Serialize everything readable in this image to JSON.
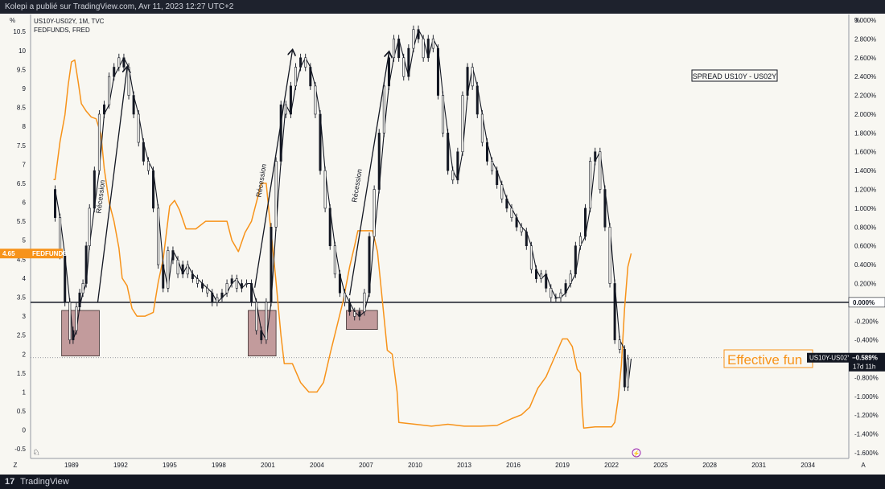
{
  "header": {
    "publish_text": "Kolepi a publié sur TradingView.com, Avr 11, 2023 12:27 UTC+2"
  },
  "footer": {
    "brand": "TradingView",
    "logo_glyph": "17"
  },
  "legend": {
    "line1": "US10Y-US02Y, 1M, TVC",
    "line2": "FEDFUNDS, FRED"
  },
  "unit_left": "%",
  "unit_right": "%",
  "corner_left": "Z",
  "corner_right": "A",
  "annotations": {
    "spread_box": "SPREAD US10Y - US02Y",
    "recession_label": "Récession",
    "effective_label": "Effective fun"
  },
  "badges": {
    "fedfunds_value": "4.65",
    "fedfunds_name": "FEDFUNDS",
    "spread_name": "US10Y-US02Y",
    "spread_value": "−0.589%",
    "countdown": "17d 11h",
    "zero_value": "0.000%"
  },
  "chart_data": {
    "type": "line",
    "x_range": [
      1986.5,
      2036.5
    ],
    "x_ticks": [
      "1989",
      "1992",
      "1995",
      "1998",
      "2001",
      "2004",
      "2007",
      "2010",
      "2013",
      "2016",
      "2019",
      "2022",
      "2025",
      "2028",
      "2031",
      "2034"
    ],
    "x_tick_values": [
      1989,
      1992,
      1995,
      1998,
      2001,
      2004,
      2007,
      2010,
      2013,
      2016,
      2019,
      2022,
      2025,
      2028,
      2031,
      2034
    ],
    "left_axis": {
      "range": [
        -0.75,
        10.95
      ],
      "ticks": [
        "10.5",
        "10",
        "9.5",
        "9",
        "8.5",
        "8",
        "7.5",
        "7",
        "6.5",
        "6",
        "5.5",
        "5",
        "4.5",
        "4",
        "3.5",
        "3",
        "2.5",
        "2",
        "1.5",
        "1",
        "0.5",
        "0",
        "-0.5"
      ],
      "tick_values": [
        10.5,
        10,
        9.5,
        9,
        8.5,
        8,
        7.5,
        7,
        6.5,
        6,
        5.5,
        5,
        4.5,
        4,
        3.5,
        3,
        2.5,
        2,
        1.5,
        1,
        0.5,
        0,
        -0.5
      ]
    },
    "right_axis": {
      "range": [
        -1.66,
        3.06
      ],
      "ticks": [
        "3.000%",
        "2.800%",
        "2.600%",
        "2.400%",
        "2.200%",
        "2.000%",
        "1.800%",
        "1.600%",
        "1.400%",
        "1.200%",
        "1.000%",
        "0.800%",
        "0.600%",
        "0.400%",
        "0.200%",
        "-0.200%",
        "-0.400%",
        "-0.600%",
        "-0.800%",
        "-1.000%",
        "-1.200%",
        "-1.400%",
        "-1.600%"
      ],
      "tick_values": [
        3.0,
        2.8,
        2.6,
        2.4,
        2.2,
        2.0,
        1.8,
        1.6,
        1.4,
        1.2,
        1.0,
        0.8,
        0.6,
        0.4,
        0.2,
        -0.2,
        -0.4,
        -0.6,
        -0.8,
        -1.0,
        -1.2,
        -1.4,
        -1.6
      ]
    },
    "series": [
      {
        "name": "FEDFUNDS",
        "axis": "left",
        "color": "#f7931a",
        "x": [
          1987.9,
          1988.0,
          1988.3,
          1988.6,
          1988.8,
          1989.0,
          1989.2,
          1989.4,
          1989.6,
          1989.9,
          1990.2,
          1990.5,
          1990.8,
          1991.0,
          1991.3,
          1991.6,
          1991.9,
          1992.1,
          1992.4,
          1992.7,
          1993.0,
          1993.5,
          1994.0,
          1994.3,
          1994.6,
          1995.0,
          1995.3,
          1995.6,
          1996.0,
          1996.6,
          1997.2,
          1997.6,
          1998.0,
          1998.5,
          1998.8,
          1999.2,
          1999.6,
          2000.0,
          2000.3,
          2000.6,
          2000.9,
          2001.1,
          2001.3,
          2001.5,
          2001.8,
          2002.0,
          2002.5,
          2003.0,
          2003.5,
          2004.0,
          2004.4,
          2004.8,
          2005.2,
          2005.6,
          2006.0,
          2006.3,
          2006.5,
          2007.0,
          2007.4,
          2007.7,
          2008.0,
          2008.3,
          2008.6,
          2008.9,
          2009.0,
          2010.0,
          2011.0,
          2012.0,
          2013.0,
          2014.0,
          2015.0,
          2015.9,
          2016.5,
          2017.0,
          2017.5,
          2018.0,
          2018.5,
          2019.0,
          2019.3,
          2019.6,
          2019.9,
          2020.1,
          2020.2,
          2020.3,
          2021.0,
          2021.5,
          2022.0,
          2022.2,
          2022.4,
          2022.6,
          2022.8,
          2023.0,
          2023.2
        ],
        "y": [
          6.6,
          6.6,
          7.6,
          8.3,
          9.1,
          9.7,
          9.75,
          9.2,
          8.6,
          8.4,
          8.25,
          8.2,
          7.8,
          6.9,
          6.0,
          5.5,
          4.8,
          4.0,
          3.8,
          3.2,
          3.0,
          3.0,
          3.1,
          3.9,
          4.5,
          5.9,
          6.05,
          5.8,
          5.3,
          5.3,
          5.5,
          5.5,
          5.5,
          5.5,
          5.0,
          4.7,
          5.2,
          5.5,
          6.0,
          6.5,
          6.5,
          5.6,
          4.8,
          3.9,
          2.5,
          1.75,
          1.75,
          1.25,
          1.0,
          1.0,
          1.25,
          2.0,
          2.7,
          3.4,
          4.3,
          4.85,
          5.25,
          5.25,
          5.25,
          4.7,
          3.4,
          2.1,
          2.0,
          1.0,
          0.2,
          0.15,
          0.1,
          0.15,
          0.1,
          0.1,
          0.12,
          0.3,
          0.4,
          0.6,
          1.1,
          1.4,
          1.9,
          2.4,
          2.4,
          2.2,
          1.6,
          1.5,
          0.6,
          0.05,
          0.08,
          0.08,
          0.08,
          0.2,
          0.8,
          1.7,
          3.2,
          4.3,
          4.65
        ]
      },
      {
        "name": "US10Y-US02Y",
        "axis": "right",
        "color": "#131722",
        "x": [
          1988.0,
          1988.3,
          1988.6,
          1988.9,
          1989.1,
          1989.3,
          1989.5,
          1989.7,
          1989.9,
          1990.1,
          1990.4,
          1990.7,
          1991.0,
          1991.3,
          1991.6,
          1991.9,
          1992.2,
          1992.5,
          1992.8,
          1993.1,
          1993.4,
          1993.7,
          1994.0,
          1994.3,
          1994.6,
          1994.9,
          1995.2,
          1995.5,
          1995.8,
          1996.1,
          1996.4,
          1996.7,
          1997.0,
          1997.3,
          1997.6,
          1997.9,
          1998.2,
          1998.5,
          1998.8,
          1999.1,
          1999.4,
          1999.7,
          2000.0,
          2000.3,
          2000.6,
          2000.9,
          2001.2,
          2001.5,
          2001.8,
          2002.1,
          2002.4,
          2002.7,
          2003.0,
          2003.3,
          2003.6,
          2003.9,
          2004.2,
          2004.5,
          2004.8,
          2005.1,
          2005.4,
          2005.7,
          2006.0,
          2006.3,
          2006.6,
          2006.9,
          2007.2,
          2007.5,
          2007.8,
          2008.1,
          2008.4,
          2008.7,
          2009.0,
          2009.3,
          2009.6,
          2009.9,
          2010.2,
          2010.5,
          2010.8,
          2011.1,
          2011.4,
          2011.7,
          2012.0,
          2012.3,
          2012.6,
          2012.9,
          2013.2,
          2013.5,
          2013.8,
          2014.1,
          2014.4,
          2014.7,
          2015.0,
          2015.3,
          2015.6,
          2015.9,
          2016.2,
          2016.5,
          2016.8,
          2017.1,
          2017.4,
          2017.7,
          2018.0,
          2018.3,
          2018.6,
          2018.9,
          2019.2,
          2019.5,
          2019.8,
          2020.1,
          2020.4,
          2020.7,
          2021.0,
          2021.3,
          2021.6,
          2021.9,
          2022.2,
          2022.5,
          2022.8,
          2023.0,
          2023.2
        ],
        "y": [
          1.2,
          0.9,
          0.5,
          0.0,
          -0.4,
          -0.3,
          -0.05,
          0.1,
          0.2,
          0.6,
          1.0,
          1.4,
          2.0,
          2.1,
          2.4,
          2.5,
          2.6,
          2.5,
          2.2,
          2.0,
          1.7,
          1.5,
          1.4,
          1.0,
          0.4,
          0.15,
          0.55,
          0.45,
          0.3,
          0.4,
          0.3,
          0.25,
          0.2,
          0.15,
          0.1,
          0.0,
          0.05,
          0.1,
          0.2,
          0.25,
          0.15,
          0.2,
          0.2,
          0.0,
          -0.3,
          -0.4,
          0.0,
          0.8,
          1.5,
          2.1,
          2.0,
          2.3,
          2.5,
          2.6,
          2.5,
          2.3,
          2.0,
          1.4,
          1.0,
          0.6,
          0.3,
          0.1,
          0.0,
          -0.1,
          -0.15,
          -0.1,
          0.1,
          0.7,
          1.2,
          1.8,
          2.3,
          2.6,
          2.8,
          2.6,
          2.4,
          2.7,
          2.9,
          2.8,
          2.6,
          2.8,
          2.7,
          2.2,
          1.8,
          1.4,
          1.3,
          1.6,
          2.2,
          2.5,
          2.3,
          2.0,
          1.7,
          1.5,
          1.4,
          1.25,
          1.1,
          1.0,
          0.9,
          0.8,
          0.75,
          0.6,
          0.35,
          0.25,
          0.3,
          0.15,
          0.05,
          0.05,
          0.1,
          0.2,
          0.3,
          0.6,
          0.7,
          1.0,
          1.5,
          1.6,
          1.2,
          0.8,
          0.2,
          -0.4,
          -0.5,
          -0.9,
          -0.6
        ]
      }
    ],
    "recession_zones": [
      {
        "x_start": 1988.4,
        "x_end": 1990.7,
        "y_top": 3.15,
        "y_bottom": 1.95
      },
      {
        "x_start": 1999.8,
        "x_end": 2001.5,
        "y_top": 3.15,
        "y_bottom": 1.95
      },
      {
        "x_start": 2005.8,
        "x_end": 2007.7,
        "y_top": 3.15,
        "y_bottom": 2.65
      }
    ],
    "arrows": [
      {
        "x1": 1990.6,
        "y1": 3.35,
        "x2": 1992.4,
        "y2": 9.55
      },
      {
        "x1": 2000.2,
        "y1": 3.75,
        "x2": 2002.5,
        "y2": 10.0
      },
      {
        "x1": 2006.0,
        "y1": 3.55,
        "x2": 2008.4,
        "y2": 9.95
      }
    ],
    "zero_line_value": 0.0,
    "last_spread_value": -0.589,
    "last_fedfunds_value": 4.65,
    "grid": false,
    "background": "#f8f7f2"
  }
}
